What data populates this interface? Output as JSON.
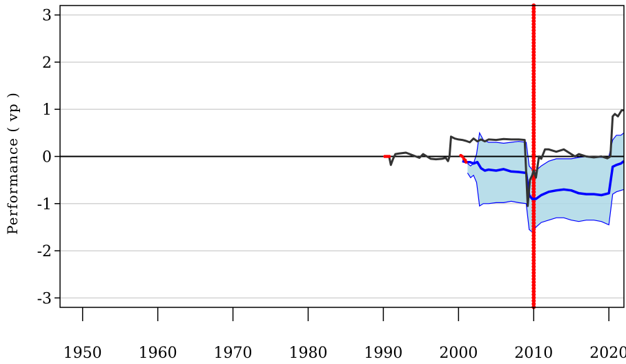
{
  "chart_data": {
    "type": "line",
    "title": "",
    "xlabel": "",
    "ylabel": "Performance ( vp )",
    "xlim": [
      1947,
      2022
    ],
    "ylim": [
      -3.2,
      3.2
    ],
    "x_ticks": [
      1950,
      1960,
      1970,
      1980,
      1990,
      2000,
      2010,
      2020
    ],
    "y_ticks": [
      -3,
      -2,
      -1,
      0,
      1,
      2,
      3
    ],
    "x_tick_labels": [
      "1950",
      "1960",
      "1970",
      "1980",
      "1990",
      "2000",
      "2010",
      "2020"
    ],
    "y_tick_labels": [
      "-3",
      "-2",
      "-1",
      "0",
      "1",
      "2",
      "3"
    ],
    "grid": "horizontal",
    "zero_line": 0,
    "vertical_marker": {
      "x": 2010,
      "color": "#ff0000"
    },
    "colors": {
      "performance": "#333333",
      "band_fill": "#add8e6",
      "band_edge": "#0000ff",
      "center": "#0000ff",
      "red_points": "#ff0000",
      "zero_line": "#000000",
      "grid": "#d3d3d3"
    },
    "series": [
      {
        "role": "performance",
        "x": [
          1990.8,
          1991.0,
          1991.3,
          1991.6,
          1992.0,
          1993.0,
          1994.0,
          1994.8,
          1995.3,
          1995.8,
          1996.3,
          1997.0,
          1997.8,
          1998.3,
          1998.6,
          1998.8,
          1999.0,
          1999.5,
          2000.0,
          2000.5,
          2001.0,
          2001.5,
          2002.0,
          2002.5,
          2003.0,
          2003.5,
          2004.0,
          2005.0,
          2006.0,
          2007.0,
          2008.0,
          2008.8,
          2009.0,
          2009.2,
          2009.5,
          2009.8,
          2010.0,
          2010.3,
          2010.7,
          2011.0,
          2011.5,
          2012.0,
          2013.0,
          2014.0,
          2015.0,
          2015.5,
          2016.0,
          2017.0,
          2018.0,
          2019.0,
          2019.8,
          2020.2,
          2020.5,
          2020.8,
          2021.2,
          2021.7,
          2022.0
        ],
        "y": [
          -0.02,
          -0.18,
          -0.05,
          0.05,
          0.06,
          0.08,
          0.02,
          -0.03,
          0.05,
          0.0,
          -0.05,
          -0.06,
          -0.05,
          -0.03,
          -0.1,
          0.0,
          0.42,
          0.38,
          0.36,
          0.35,
          0.33,
          0.3,
          0.38,
          0.32,
          0.36,
          0.32,
          0.36,
          0.35,
          0.37,
          0.36,
          0.36,
          0.35,
          -0.35,
          -1.05,
          -0.5,
          -0.4,
          -0.3,
          -0.45,
          0.0,
          -0.05,
          0.15,
          0.15,
          0.1,
          0.15,
          0.05,
          0.0,
          0.05,
          0.0,
          -0.02,
          0.0,
          -0.04,
          0.0,
          0.85,
          0.9,
          0.85,
          0.98,
          0.98
        ]
      },
      {
        "role": "band_upper",
        "x": [
          2001.2,
          2001.6,
          2002.0,
          2002.4,
          2002.8,
          2003.3,
          2004.0,
          2005.0,
          2006.0,
          2007.0,
          2008.0,
          2009.0,
          2009.4,
          2009.8,
          2010.3,
          2011.0,
          2012.0,
          2013.0,
          2014.0,
          2015.0,
          2016.0,
          2017.0,
          2018.0,
          2019.0,
          2020.0,
          2020.5,
          2021.0,
          2021.6,
          2022.0
        ],
        "y": [
          -0.15,
          -0.2,
          -0.15,
          0.05,
          0.5,
          0.35,
          0.3,
          0.3,
          0.28,
          0.3,
          0.32,
          0.3,
          -0.2,
          -0.28,
          -0.3,
          -0.2,
          -0.1,
          -0.05,
          -0.05,
          -0.05,
          -0.02,
          0.0,
          0.0,
          -0.02,
          0.0,
          0.35,
          0.45,
          0.45,
          0.5
        ]
      },
      {
        "role": "band_lower",
        "x": [
          2001.2,
          2001.6,
          2002.0,
          2002.4,
          2002.8,
          2003.3,
          2004.0,
          2005.0,
          2006.0,
          2007.0,
          2008.0,
          2009.0,
          2009.4,
          2009.8,
          2010.3,
          2011.0,
          2012.0,
          2013.0,
          2014.0,
          2015.0,
          2016.0,
          2017.0,
          2018.0,
          2019.0,
          2020.0,
          2020.5,
          2021.0,
          2021.6,
          2022.0
        ],
        "y": [
          -0.35,
          -0.45,
          -0.4,
          -0.55,
          -1.05,
          -1.0,
          -1.0,
          -0.98,
          -0.98,
          -0.95,
          -0.98,
          -1.0,
          -1.55,
          -1.6,
          -1.5,
          -1.4,
          -1.35,
          -1.3,
          -1.3,
          -1.35,
          -1.38,
          -1.35,
          -1.35,
          -1.38,
          -1.45,
          -0.8,
          -0.75,
          -0.72,
          -0.7
        ]
      },
      {
        "role": "center",
        "x": [
          2000.5,
          2001.0,
          2001.5,
          2002.0,
          2002.5,
          2003.0,
          2003.5,
          2004.0,
          2005.0,
          2006.0,
          2007.0,
          2008.0,
          2009.0,
          2009.4,
          2009.8,
          2010.3,
          2011.0,
          2012.0,
          2013.0,
          2014.0,
          2015.0,
          2016.0,
          2017.0,
          2018.0,
          2019.0,
          2020.0,
          2020.5,
          2021.0,
          2021.6,
          2022.0
        ],
        "y": [
          -0.1,
          -0.12,
          -0.12,
          -0.15,
          -0.12,
          -0.25,
          -0.3,
          -0.28,
          -0.3,
          -0.27,
          -0.32,
          -0.33,
          -0.35,
          -0.82,
          -0.9,
          -0.9,
          -0.82,
          -0.75,
          -0.72,
          -0.7,
          -0.72,
          -0.78,
          -0.8,
          -0.8,
          -0.82,
          -0.78,
          -0.22,
          -0.18,
          -0.15,
          -0.1
        ]
      },
      {
        "role": "red_points",
        "x": [
          1990.2,
          1990.4,
          1990.6,
          1990.8,
          2000.3,
          2000.5,
          2000.7,
          2000.9,
          2001.0
        ],
        "y": [
          0.0,
          0.0,
          0.0,
          0.0,
          0.02,
          0.0,
          -0.05,
          -0.08,
          -0.12
        ]
      }
    ]
  }
}
